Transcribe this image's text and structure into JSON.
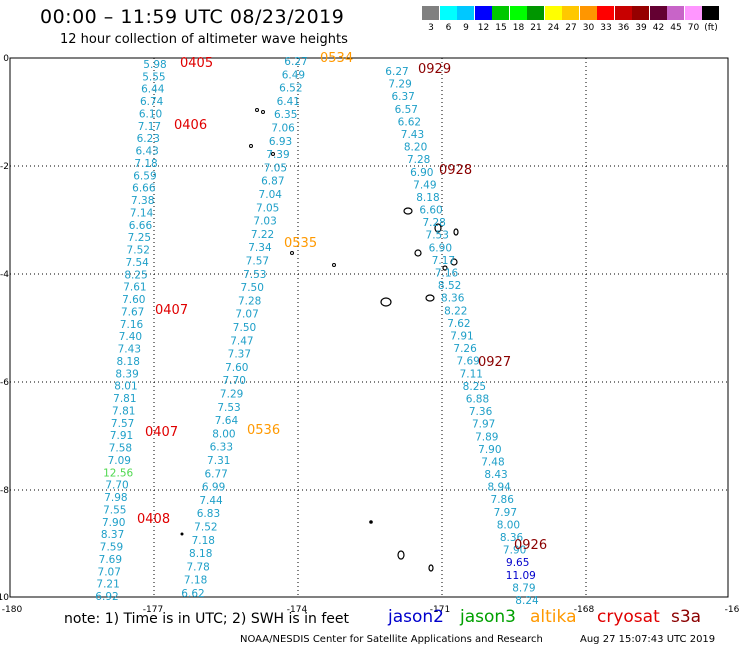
{
  "header": {
    "title": "00:00 – 11:59 UTC 08/23/2019",
    "subtitle": "12 hour collection of altimeter wave heights"
  },
  "legend": {
    "colors": [
      "#808080",
      "#00ffff",
      "#00c8ff",
      "#0000ff",
      "#00c800",
      "#00ff00",
      "#009600",
      "#ffff00",
      "#ffc800",
      "#ff9600",
      "#ff0000",
      "#c80000",
      "#960000",
      "#640032",
      "#c864c8",
      "#ff96ff",
      "#000000"
    ],
    "labels": [
      "3",
      "6",
      "9",
      "12",
      "15",
      "18",
      "21",
      "24",
      "27",
      "30",
      "33",
      "36",
      "39",
      "42",
      "45",
      "70",
      "(ft)"
    ]
  },
  "axes": {
    "x_ticks": [
      "-180",
      "-177",
      "-174",
      "-171",
      "-168",
      "-16"
    ],
    "y_ticks": [
      "0",
      "-2",
      "-4",
      "-6",
      "-8",
      "-10"
    ]
  },
  "tracks": [
    {
      "satellite": "jason2-like",
      "color": "#1e9fc8",
      "values": [
        "5.98",
        "5.55",
        "6.44",
        "6.74",
        "6.10",
        "7.17",
        "6.23",
        "6.43",
        "7.18",
        "6.59",
        "6.66",
        "7.38",
        "7.14",
        "6.66",
        "7.25",
        "7.52",
        "7.54",
        "8.25",
        "7.61",
        "7.60",
        "7.67",
        "7.16",
        "7.40",
        "7.43",
        "8.18",
        "8.39",
        "8.01",
        "7.81",
        "7.81",
        "7.57",
        "7.91",
        "7.58",
        "7.09",
        "12.56",
        "7.70",
        "7.98",
        "7.55",
        "7.90",
        "8.37",
        "7.59",
        "7.69",
        "7.07",
        "7.21",
        "6.92"
      ]
    },
    {
      "satellite": "jason2-like",
      "color": "#1e9fc8",
      "values": [
        "6.27",
        "6.49",
        "6.52",
        "6.41",
        "6.35",
        "7.06",
        "6.93",
        "7.39",
        "7.05",
        "6.87",
        "7.04",
        "7.05",
        "7.03",
        "7.22",
        "7.34",
        "7.57",
        "7.53",
        "7.50",
        "7.28",
        "7.07",
        "7.50",
        "7.47",
        "7.37",
        "7.60",
        "7.70",
        "7.29",
        "7.53",
        "7.64",
        "8.00",
        "6.33",
        "7.31",
        "6.77",
        "6.99",
        "7.44",
        "6.83",
        "7.52",
        "7.18",
        "8.18",
        "7.78",
        "7.18",
        "6.62"
      ]
    },
    {
      "satellite": "jason2-like",
      "color": "#1e9fc8",
      "values": [
        "6.27",
        "7.29",
        "6.37",
        "6.57",
        "6.62",
        "7.43",
        "8.20",
        "7.28",
        "6.90",
        "7.49",
        "8.18",
        "6.60",
        "7.28",
        "7.53",
        "6.90",
        "7.17",
        "7.16",
        "8.52",
        "8.36",
        "8.22",
        "7.62",
        "7.91",
        "7.26",
        "7.69",
        "7.11",
        "8.25",
        "6.88",
        "7.36",
        "7.97",
        "7.89",
        "7.90",
        "7.48",
        "8.43",
        "8.94",
        "7.86",
        "7.97",
        "8.00",
        "8.36",
        "7.90",
        "9.65",
        "11.09",
        "8.79",
        "8.24"
      ]
    }
  ],
  "time_labels": [
    {
      "text": "0405",
      "color": "#e00000"
    },
    {
      "text": "0406",
      "color": "#e00000"
    },
    {
      "text": "0407",
      "color": "#e00000"
    },
    {
      "text": "0407",
      "color": "#e00000"
    },
    {
      "text": "0408",
      "color": "#e00000"
    },
    {
      "text": "0534",
      "color": "#ff9900"
    },
    {
      "text": "0535",
      "color": "#ff9900"
    },
    {
      "text": "0536",
      "color": "#ff9900"
    },
    {
      "text": "0929",
      "color": "#8b0000"
    },
    {
      "text": "0928",
      "color": "#8b0000"
    },
    {
      "text": "0927",
      "color": "#8b0000"
    },
    {
      "text": "0926",
      "color": "#8b0000"
    }
  ],
  "footer": {
    "note": "note: 1) Time is in UTC; 2) SWH is in feet",
    "satellites": [
      {
        "name": "jason2",
        "color": "#0000cc"
      },
      {
        "name": "jason3",
        "color": "#00a000"
      },
      {
        "name": "altika",
        "color": "#ff9900"
      },
      {
        "name": "cryosat",
        "color": "#e00000"
      },
      {
        "name": "s3a",
        "color": "#8b0000"
      }
    ],
    "credit": "NOAA/NESDIS Center for Satellite Applications and Research",
    "timestamp": "Aug 27 15:07:43 UTC 2019"
  }
}
